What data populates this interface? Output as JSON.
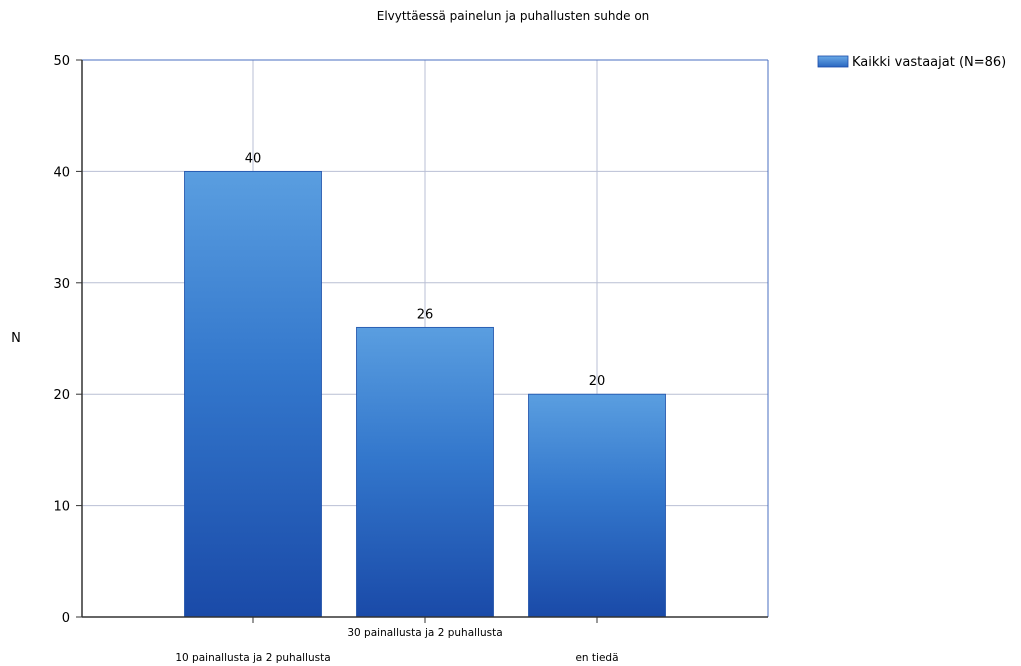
{
  "chart_data": {
    "type": "bar",
    "title": "Elvyttäessä painelun ja puhallusten suhde on",
    "xlabel": "",
    "ylabel": "N",
    "ylim": [
      0,
      50
    ],
    "yticks": [
      0,
      10,
      20,
      30,
      40,
      50
    ],
    "categories": [
      "10 painallusta ja 2 puhallusta",
      "30 painallusta ja 2 puhallusta",
      "en tiedä"
    ],
    "series": [
      {
        "name": "Kaikki vastaajat (N=86)",
        "values": [
          40,
          26,
          20
        ],
        "color": "#2f6fc2"
      }
    ],
    "grid": true,
    "legend_position": "top-right"
  }
}
